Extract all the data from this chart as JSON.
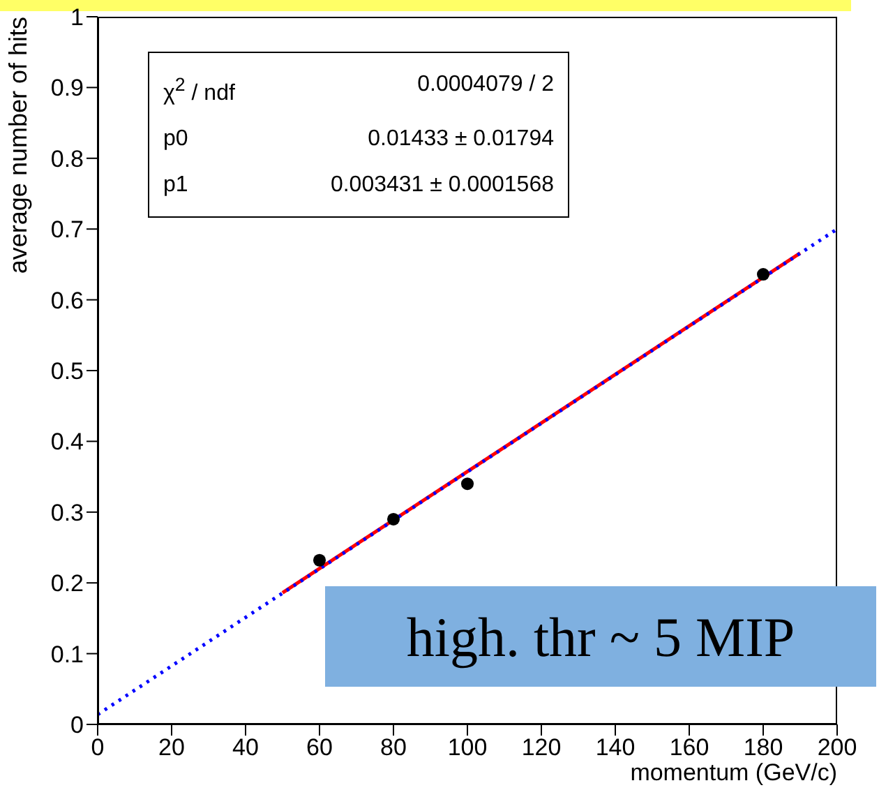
{
  "chart_data": {
    "type": "scatter",
    "xlabel": "momentum (GeV/c)",
    "ylabel": "average number of hits",
    "xlim": [
      0,
      200
    ],
    "xticks": [
      0,
      20,
      40,
      60,
      80,
      100,
      120,
      140,
      160,
      180,
      200
    ],
    "ylim": [
      0,
      1
    ],
    "yticks": [
      0,
      0.1,
      0.2,
      0.3,
      0.4,
      0.5,
      0.6,
      0.7,
      0.8,
      0.9,
      1
    ],
    "grid": false,
    "legend": false,
    "marker": "circle",
    "series": [
      {
        "type": "line",
        "color": "#ff0000",
        "x": [
          50,
          190
        ],
        "values": [
          0.186,
          0.666
        ],
        "line_style": "solid",
        "marker": "none"
      },
      {
        "type": "line",
        "color": "#0000ff",
        "x": [
          0,
          200
        ],
        "values": [
          0.014,
          0.7
        ],
        "line_style": "dotted",
        "marker": "none"
      },
      {
        "color": "#000000",
        "x": [
          60,
          80,
          100,
          180
        ],
        "values": [
          0.232,
          0.29,
          0.34,
          0.636
        ]
      }
    ],
    "annotations": [
      "χ$^{2}$ / ndf",
      "0.0004079 / 2",
      "p0",
      "0.01433 ± 0.01794",
      "p1",
      "0.003431 ± 0.0001568",
      "high. thr ~ 5 MIP"
    ]
  }
}
